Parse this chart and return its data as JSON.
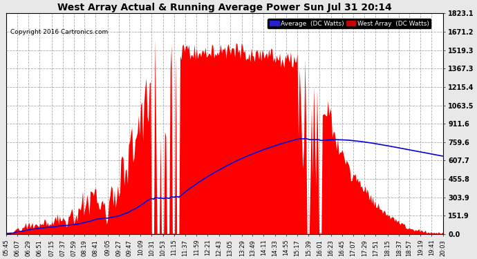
{
  "title": "West Array Actual & Running Average Power Sun Jul 31 20:14",
  "copyright": "Copyright 2016 Cartronics.com",
  "y_ticks": [
    0.0,
    151.9,
    303.9,
    455.8,
    607.7,
    759.6,
    911.6,
    1063.5,
    1215.4,
    1367.3,
    1519.3,
    1671.2,
    1823.1
  ],
  "y_max": 1823.1,
  "background_color": "#e8e8e8",
  "plot_bg_color": "#ffffff",
  "grid_color": "#aaaaaa",
  "red_color": "#ff0000",
  "blue_color": "#0000dd",
  "legend_avg_bg": "#2222cc",
  "legend_west_bg": "#cc0000",
  "x_labels": [
    "05:45",
    "06:07",
    "06:29",
    "06:51",
    "07:15",
    "07:37",
    "07:59",
    "08:19",
    "08:41",
    "09:05",
    "09:27",
    "09:47",
    "10:09",
    "10:31",
    "10:53",
    "11:15",
    "11:37",
    "11:59",
    "12:21",
    "12:43",
    "13:05",
    "13:29",
    "13:49",
    "14:11",
    "14:33",
    "14:55",
    "15:17",
    "15:39",
    "16:01",
    "16:23",
    "16:45",
    "17:07",
    "17:29",
    "17:51",
    "18:15",
    "18:37",
    "18:57",
    "19:19",
    "19:41",
    "20:03"
  ]
}
